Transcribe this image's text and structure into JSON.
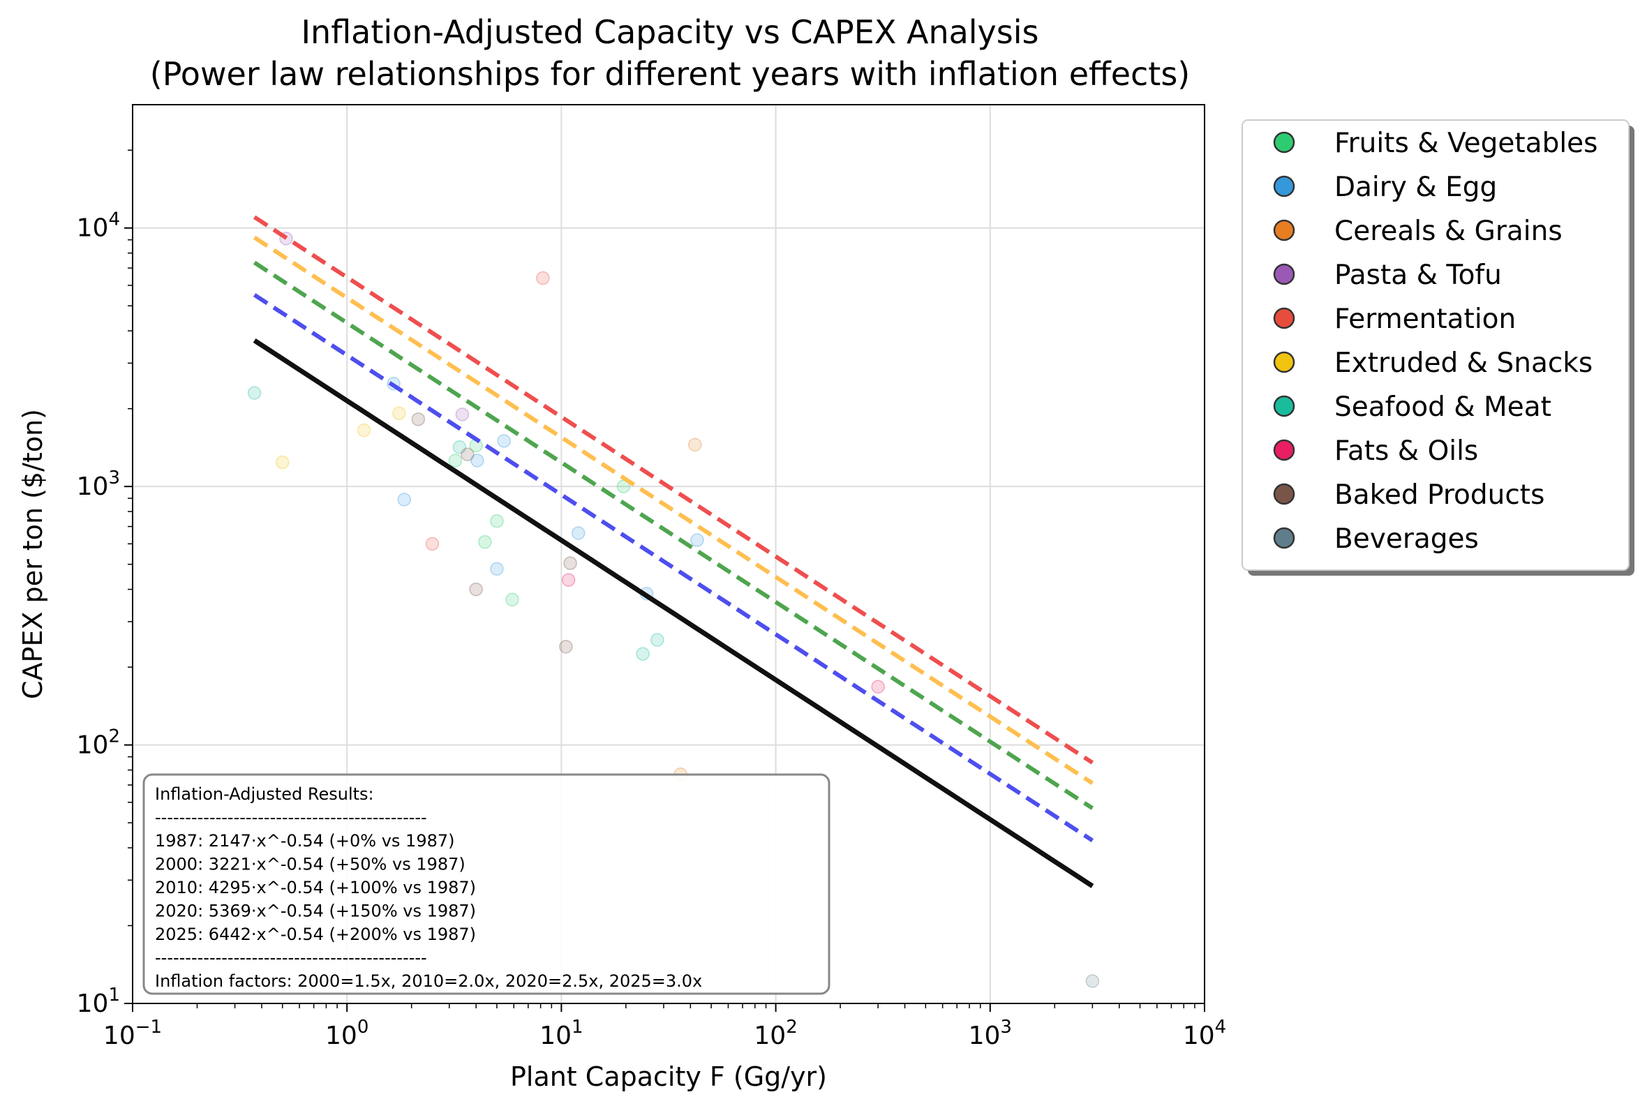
{
  "chart_data": {
    "type": "scatter",
    "title": "Inflation-Adjusted Capacity vs CAPEX Analysis",
    "subtitle": "(Power law relationships for different years with inflation effects)",
    "xlabel": "Plant Capacity  F  (Gg/yr)",
    "ylabel": "CAPEX per ton  ($/ton)",
    "xscale": "log",
    "yscale": "log",
    "xlim": [
      0.1,
      10000
    ],
    "ylim": [
      10,
      30000
    ],
    "grid": true,
    "x_ticks": [
      {
        "value": 0.1,
        "base": "10",
        "exp": "−1"
      },
      {
        "value": 1,
        "base": "10",
        "exp": "0"
      },
      {
        "value": 10,
        "base": "10",
        "exp": "1"
      },
      {
        "value": 100,
        "base": "10",
        "exp": "2"
      },
      {
        "value": 1000,
        "base": "10",
        "exp": "3"
      },
      {
        "value": 10000,
        "base": "10",
        "exp": "4"
      }
    ],
    "y_ticks": [
      {
        "value": 10,
        "base": "10",
        "exp": "1"
      },
      {
        "value": 100,
        "base": "10",
        "exp": "2"
      },
      {
        "value": 1000,
        "base": "10",
        "exp": "3"
      },
      {
        "value": 10000,
        "base": "10",
        "exp": "4"
      }
    ],
    "legend_position": "outside-top-right",
    "categories": [
      {
        "name": "Fruits & Vegetables",
        "color": "#2ecc71"
      },
      {
        "name": "Dairy & Egg",
        "color": "#3498db"
      },
      {
        "name": "Cereals & Grains",
        "color": "#e67e22"
      },
      {
        "name": "Pasta & Tofu",
        "color": "#9b59b6"
      },
      {
        "name": "Fermentation",
        "color": "#e74c3c"
      },
      {
        "name": "Extruded & Snacks",
        "color": "#f1c40f"
      },
      {
        "name": "Seafood & Meat",
        "color": "#1abc9c"
      },
      {
        "name": "Fats & Oils",
        "color": "#e91e63"
      },
      {
        "name": "Baked Products",
        "color": "#795548"
      },
      {
        "name": "Beverages",
        "color": "#607d8b"
      }
    ],
    "points": [
      {
        "x": 0.37,
        "y": 2300,
        "cat": "Seafood & Meat"
      },
      {
        "x": 0.5,
        "y": 1240,
        "cat": "Extruded & Snacks"
      },
      {
        "x": 0.52,
        "y": 9100,
        "cat": "Pasta & Tofu"
      },
      {
        "x": 1.2,
        "y": 1650,
        "cat": "Extruded & Snacks"
      },
      {
        "x": 1.65,
        "y": 2500,
        "cat": "Dairy & Egg"
      },
      {
        "x": 1.75,
        "y": 1920,
        "cat": "Extruded & Snacks"
      },
      {
        "x": 1.85,
        "y": 890,
        "cat": "Dairy & Egg"
      },
      {
        "x": 2.15,
        "y": 1820,
        "cat": "Baked Products"
      },
      {
        "x": 2.5,
        "y": 600,
        "cat": "Fermentation"
      },
      {
        "x": 3.2,
        "y": 1260,
        "cat": "Fruits & Vegetables"
      },
      {
        "x": 3.35,
        "y": 1420,
        "cat": "Seafood & Meat"
      },
      {
        "x": 3.45,
        "y": 1900,
        "cat": "Pasta & Tofu"
      },
      {
        "x": 3.65,
        "y": 1330,
        "cat": "Baked Products"
      },
      {
        "x": 4.0,
        "y": 1440,
        "cat": "Fruits & Vegetables"
      },
      {
        "x": 4.05,
        "y": 1260,
        "cat": "Dairy & Egg"
      },
      {
        "x": 4.0,
        "y": 400,
        "cat": "Baked Products"
      },
      {
        "x": 4.4,
        "y": 610,
        "cat": "Fruits & Vegetables"
      },
      {
        "x": 5.0,
        "y": 735,
        "cat": "Fruits & Vegetables"
      },
      {
        "x": 5.0,
        "y": 480,
        "cat": "Dairy & Egg"
      },
      {
        "x": 5.4,
        "y": 1500,
        "cat": "Dairy & Egg"
      },
      {
        "x": 5.9,
        "y": 365,
        "cat": "Fruits & Vegetables"
      },
      {
        "x": 8.2,
        "y": 6400,
        "cat": "Fermentation"
      },
      {
        "x": 10.5,
        "y": 240,
        "cat": "Baked Products"
      },
      {
        "x": 10.8,
        "y": 435,
        "cat": "Fats & Oils"
      },
      {
        "x": 11.0,
        "y": 505,
        "cat": "Baked Products"
      },
      {
        "x": 12.0,
        "y": 660,
        "cat": "Dairy & Egg"
      },
      {
        "x": 19.5,
        "y": 1000,
        "cat": "Fruits & Vegetables"
      },
      {
        "x": 24.0,
        "y": 225,
        "cat": "Seafood & Meat"
      },
      {
        "x": 25.0,
        "y": 385,
        "cat": "Dairy & Egg"
      },
      {
        "x": 28.0,
        "y": 255,
        "cat": "Seafood & Meat"
      },
      {
        "x": 36.0,
        "y": 77,
        "cat": "Cereals & Grains"
      },
      {
        "x": 42.0,
        "y": 1450,
        "cat": "Cereals & Grains"
      },
      {
        "x": 43.0,
        "y": 620,
        "cat": "Dairy & Egg"
      },
      {
        "x": 300.0,
        "y": 168,
        "cat": "Fats & Oils"
      },
      {
        "x": 3000.0,
        "y": 12.2,
        "cat": "Beverages"
      }
    ],
    "fit_lines": [
      {
        "year": "1987",
        "coef": 2147,
        "exp": -0.54,
        "color": "#111111",
        "style": "solid",
        "x_range": [
          0.37,
          3000
        ]
      },
      {
        "year": "2000",
        "coef": 3221,
        "exp": -0.54,
        "color": "#4444ee",
        "style": "dashed",
        "x_range": [
          0.37,
          3000
        ]
      },
      {
        "year": "2010",
        "coef": 4295,
        "exp": -0.54,
        "color": "#44a044",
        "style": "dashed",
        "x_range": [
          0.37,
          3000
        ]
      },
      {
        "year": "2020",
        "coef": 5369,
        "exp": -0.54,
        "color": "#ffba44",
        "style": "dashed",
        "x_range": [
          0.37,
          3000
        ]
      },
      {
        "year": "2025",
        "coef": 6442,
        "exp": -0.54,
        "color": "#ee4444",
        "style": "dashed",
        "x_range": [
          0.37,
          3000
        ]
      }
    ],
    "annotation": {
      "lines": [
        "Inflation-Adjusted Results:",
        "---------------------------------------------",
        "1987: 2147·x^-0.54 (+0% vs 1987)",
        "2000: 3221·x^-0.54 (+50% vs 1987)",
        "2010: 4295·x^-0.54 (+100% vs 1987)",
        "2020: 5369·x^-0.54 (+150% vs 1987)",
        "2025: 6442·x^-0.54 (+200% vs 1987)",
        "---------------------------------------------",
        "Inflation factors: 2000=1.5x, 2010=2.0x, 2020=2.5x, 2025=3.0x"
      ]
    }
  }
}
